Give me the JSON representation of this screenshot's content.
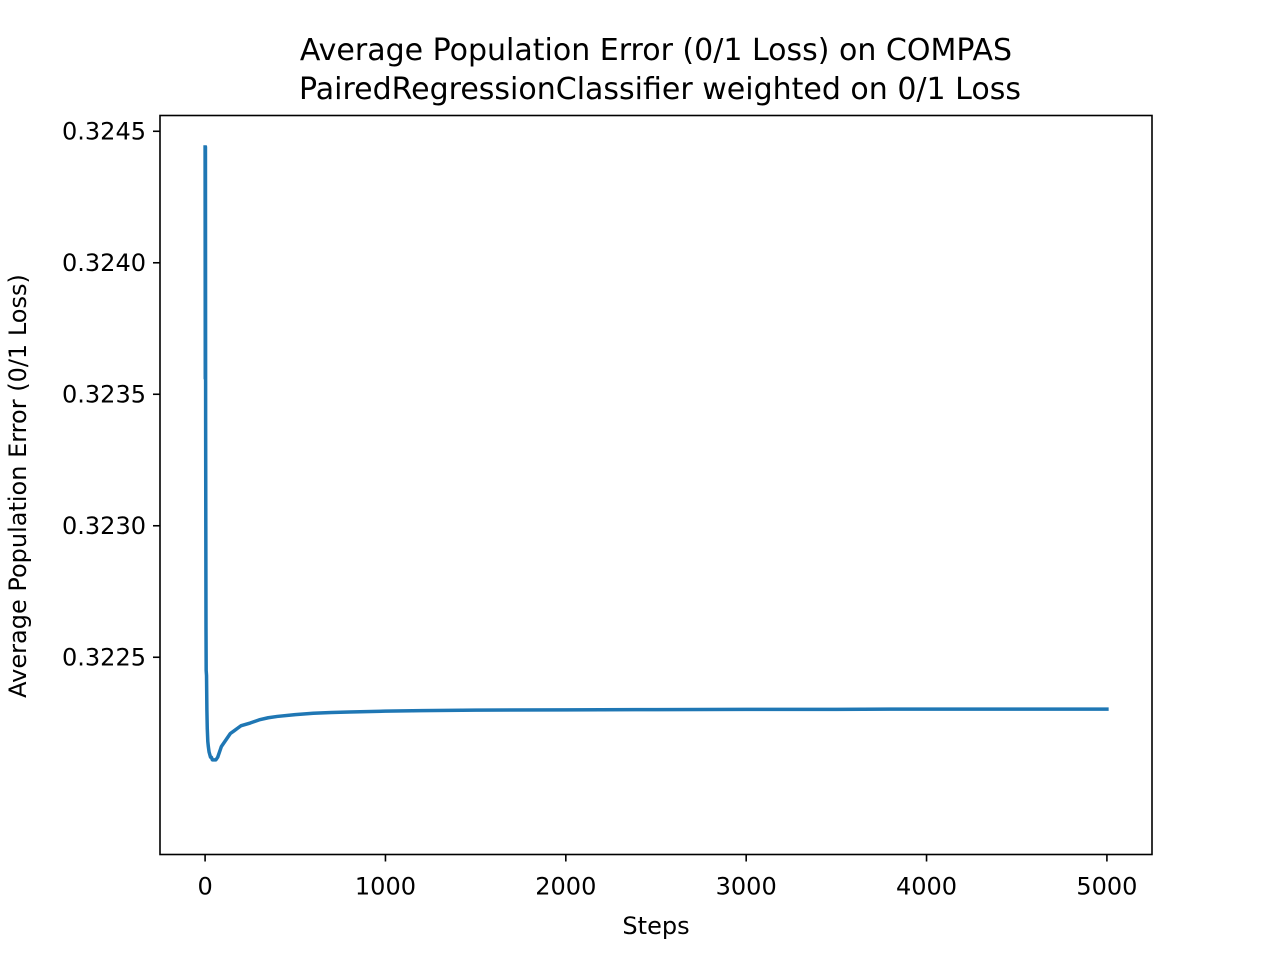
{
  "chart_data": {
    "type": "line",
    "title": "Average Population Error (0/1 Loss) on COMPAS",
    "subtitle": "PairedRegressionClassifier weighted on 0/1 Loss",
    "xlabel": "Steps",
    "ylabel": "Average Population Error (0/1 Loss)",
    "xlim": [
      -250,
      5250
    ],
    "ylim": [
      0.32175,
      0.32456
    ],
    "grid": false,
    "line_color": "#1f77b4",
    "x_ticks": [
      0,
      1000,
      2000,
      3000,
      4000,
      5000
    ],
    "x_tick_labels": [
      "0",
      "1000",
      "2000",
      "3000",
      "4000",
      "5000"
    ],
    "y_ticks": [
      0.3225,
      0.323,
      0.3235,
      0.324,
      0.3245
    ],
    "y_tick_labels": [
      "0.3225",
      "0.3230",
      "0.3235",
      "0.3240",
      "0.3245"
    ],
    "series": [
      {
        "x": [
          0,
          1,
          2,
          3,
          4,
          5,
          6,
          8,
          10,
          12,
          15,
          18,
          22,
          26,
          30,
          35,
          40,
          45,
          50,
          55,
          60,
          70,
          80,
          90,
          100,
          120,
          140,
          160,
          180,
          200,
          250,
          300,
          350,
          400,
          500,
          600,
          700,
          800,
          1000,
          1200,
          1500,
          2000,
          2500,
          3000,
          3500,
          4000,
          4500,
          5000
        ],
        "y": [
          0.32444,
          0.32356,
          0.32444,
          0.3234,
          0.323,
          0.32262,
          0.32245,
          0.32243,
          0.3223,
          0.32223,
          0.32218,
          0.32216,
          0.32214,
          0.32213,
          0.32212,
          0.32212,
          0.32211,
          0.32211,
          0.32211,
          0.32211,
          0.32211,
          0.32212,
          0.32214,
          0.32216,
          0.32217,
          0.32219,
          0.32221,
          0.32222,
          0.32223,
          0.32224,
          0.32225,
          0.322262,
          0.32227,
          0.322275,
          0.322282,
          0.322287,
          0.32229,
          0.322292,
          0.322295,
          0.322297,
          0.322299,
          0.3223,
          0.322301,
          0.322302,
          0.322302,
          0.322303,
          0.322303,
          0.322303
        ]
      }
    ]
  }
}
